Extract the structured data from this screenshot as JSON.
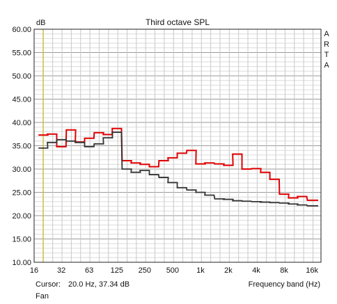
{
  "chart_data": {
    "type": "line",
    "title": "Third octave SPL",
    "ylabel": "dB",
    "xlabel": "Frequency band (Hz)",
    "watermark": "ARTA",
    "x_ticks": [
      "16",
      "32",
      "63",
      "125",
      "250",
      "500",
      "1k",
      "2k",
      "4k",
      "8k",
      "16k"
    ],
    "y_ticks": [
      "60.00",
      "55.00",
      "50.00",
      "45.00",
      "40.00",
      "35.00",
      "30.00",
      "25.00",
      "20.00",
      "15.00",
      "10.00"
    ],
    "ylim": [
      10,
      60
    ],
    "x_scale": "log",
    "x_range_hz": [
      16,
      20000
    ],
    "grid": true,
    "cursor_hz": 20,
    "bands_hz": [
      20,
      25,
      31.5,
      40,
      50,
      63,
      80,
      100,
      125,
      160,
      200,
      250,
      315,
      400,
      500,
      630,
      800,
      1000,
      1250,
      1600,
      2000,
      2500,
      3150,
      4000,
      5000,
      6300,
      8000,
      10000,
      12500,
      16000,
      20000
    ],
    "series": [
      {
        "color": "#e00000",
        "values": [
          37.3,
          37.5,
          34.8,
          38.4,
          35.8,
          36.6,
          37.8,
          37.4,
          38.7,
          31.8,
          31.3,
          31.0,
          30.5,
          31.8,
          32.4,
          33.4,
          34.0,
          31.1,
          31.3,
          31.1,
          30.8,
          33.2,
          30.0,
          30.1,
          29.3,
          27.8,
          24.6,
          23.8,
          24.1,
          23.3,
          23.3
        ]
      },
      {
        "color": "#333333",
        "values": [
          34.5,
          35.7,
          36.3,
          36.0,
          35.7,
          34.8,
          35.4,
          36.7,
          37.9,
          30.0,
          29.3,
          29.7,
          28.8,
          28.2,
          27.1,
          26.0,
          25.5,
          25.0,
          24.4,
          23.6,
          23.5,
          23.2,
          23.1,
          23.0,
          22.9,
          22.8,
          22.7,
          22.5,
          22.3,
          22.1,
          22.1
        ]
      }
    ]
  },
  "status": {
    "cursor_label": "Cursor:",
    "cursor_value": "20.0 Hz, 37.34 dB",
    "x_caption": "Frequency band (Hz)",
    "mode": "Fan"
  }
}
